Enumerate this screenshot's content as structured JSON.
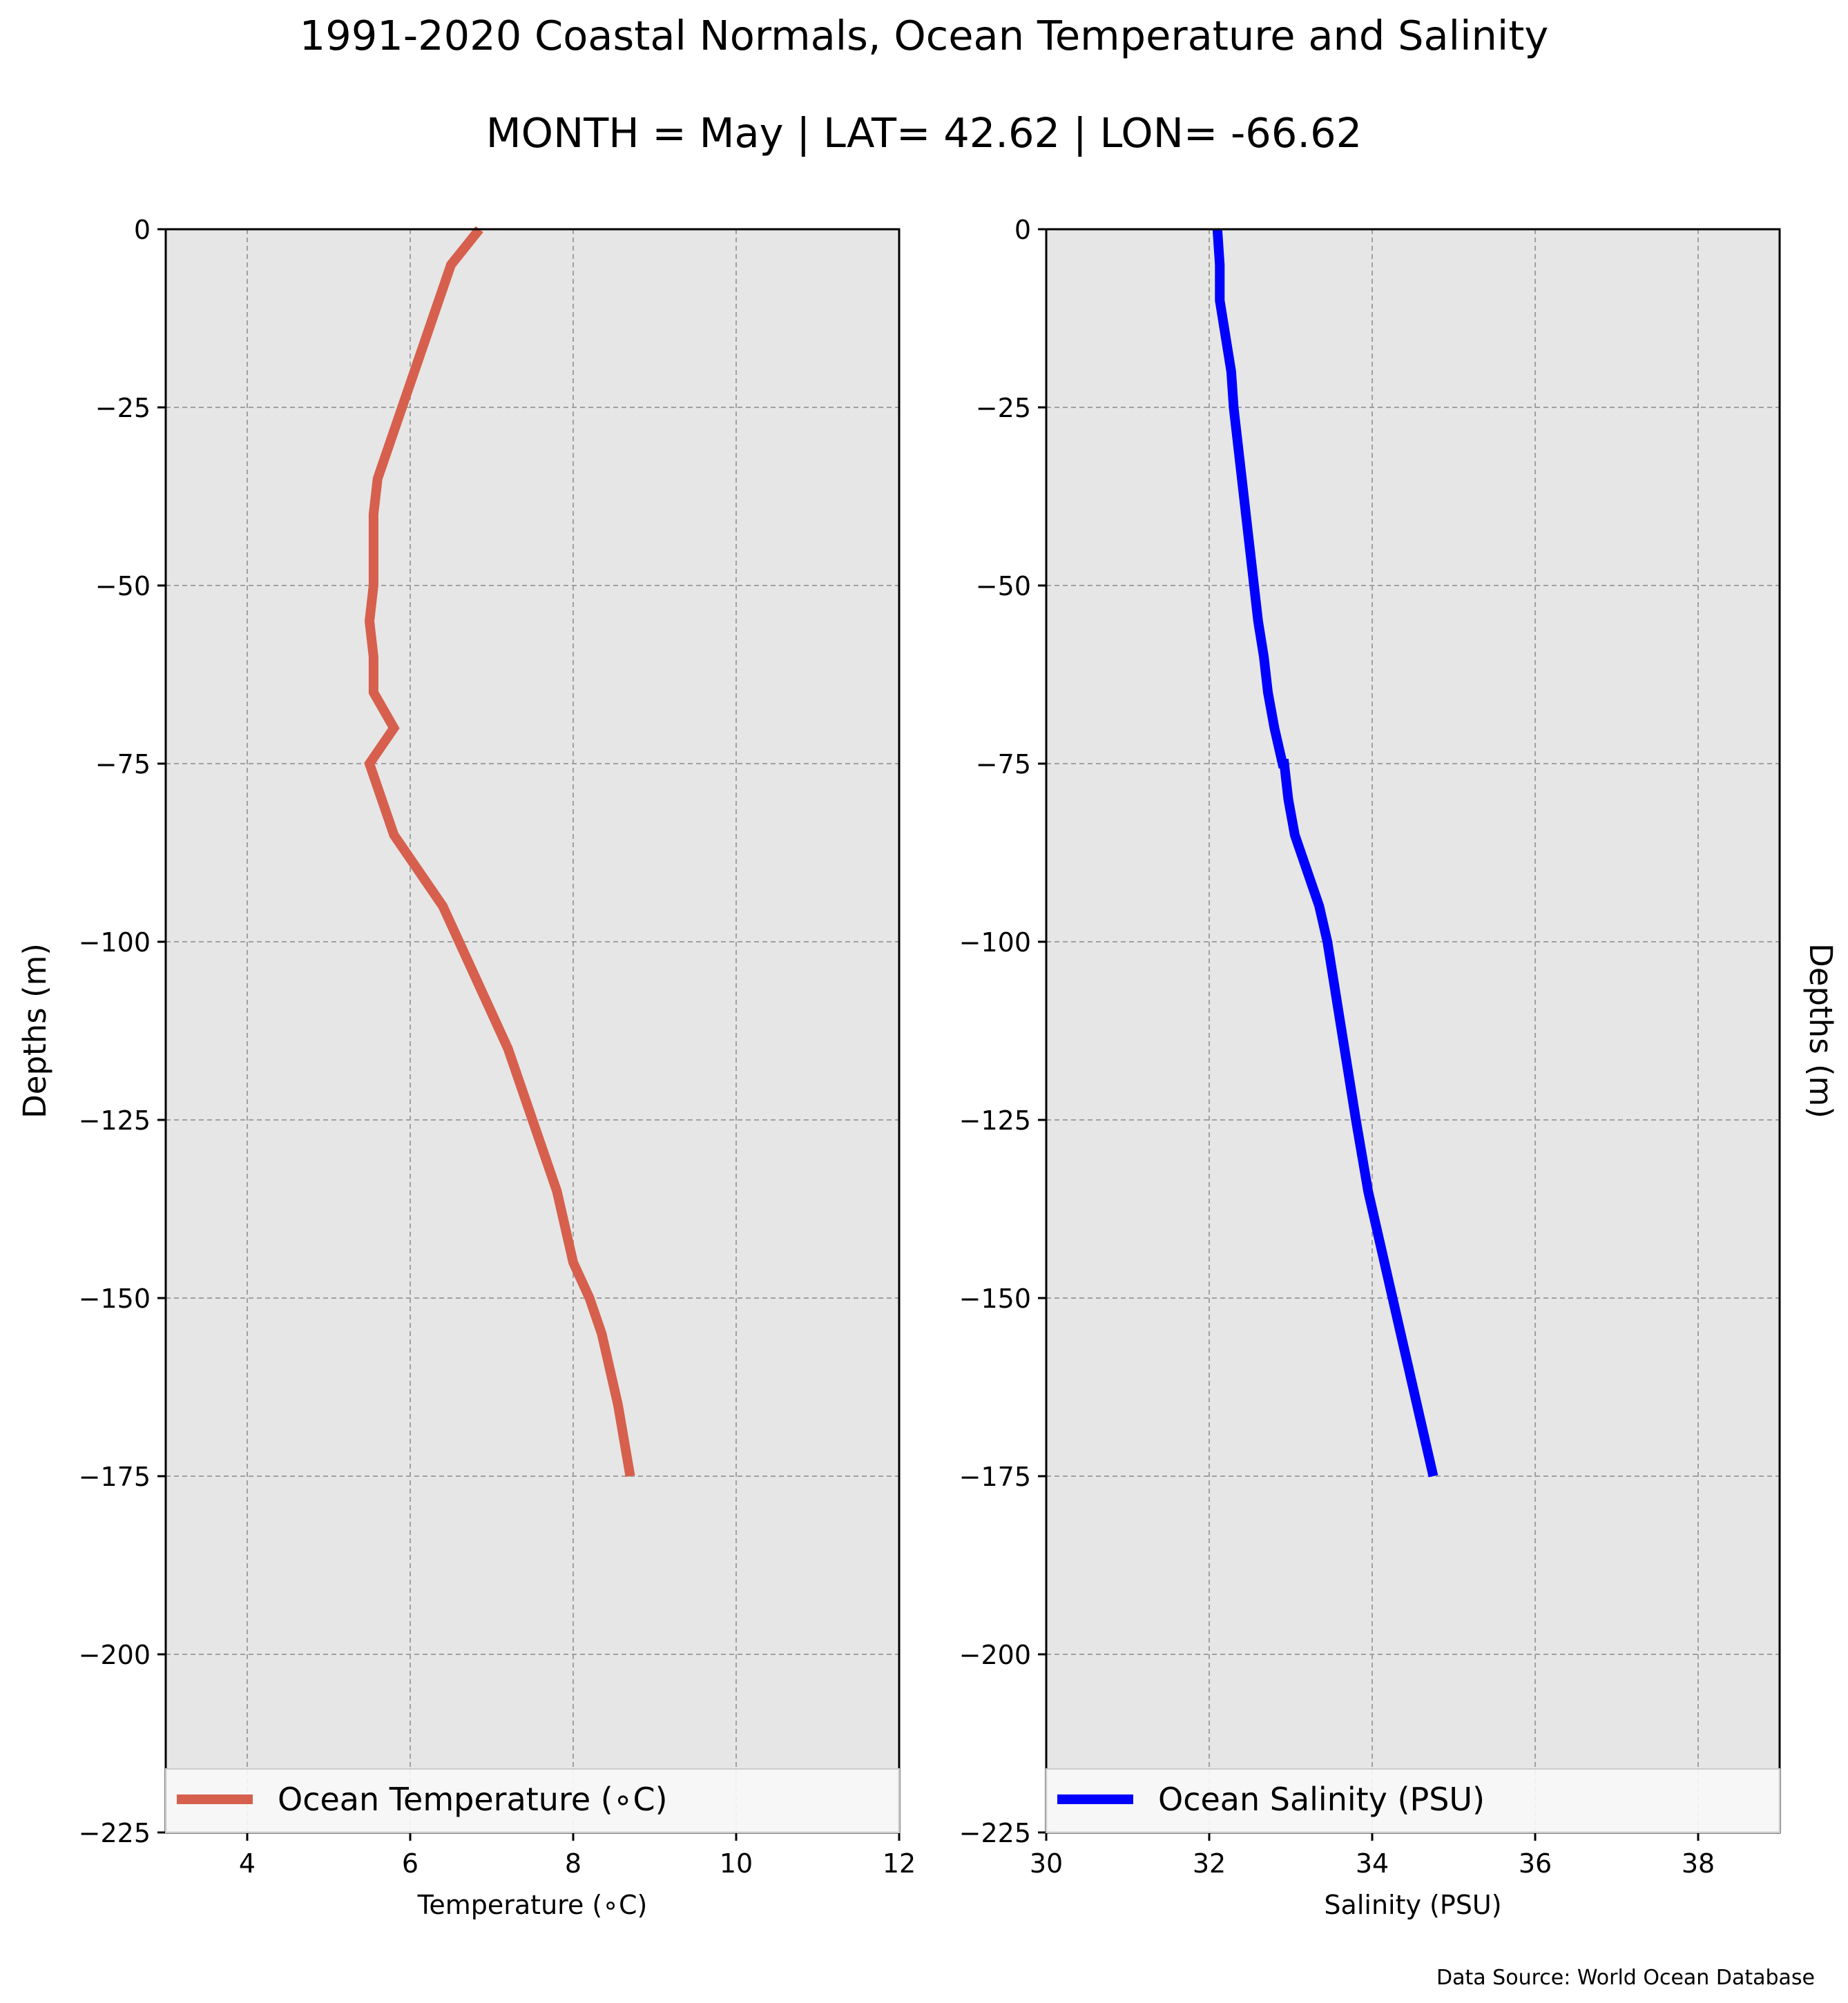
{
  "title": "1991-2020 Coastal Normals, Ocean Temperature and Salinity",
  "subtitle": "MONTH = May | LAT= 42.62 | LON= -66.62",
  "source": "Data Source: World Ocean Database",
  "colors": {
    "temperature": "#d6604d",
    "salinity": "#0000ff",
    "plot_bg": "#e6e6e6",
    "grid": "#a0a0a0"
  },
  "chart_data": [
    {
      "type": "line",
      "xlabel": "Temperature (∘C)",
      "ylabel": "Depths (m)",
      "xlim": [
        3,
        12
      ],
      "ylim": [
        -225,
        0
      ],
      "xticks": [
        4,
        6,
        8,
        10,
        12
      ],
      "xtick_labels": [
        "4",
        "6",
        "8",
        "10",
        "12"
      ],
      "yticks": [
        0,
        -25,
        -50,
        -75,
        -100,
        -125,
        -150,
        -175,
        -200,
        -225
      ],
      "ytick_labels": [
        "0",
        "−25",
        "−50",
        "−75",
        "−100",
        "−125",
        "−150",
        "−175",
        "−200",
        "−225"
      ],
      "grid": true,
      "legend_position": "bottom",
      "series": [
        {
          "name": "Ocean Temperature (∘C)",
          "x": [
            6.85,
            6.5,
            6.35,
            6.2,
            6.05,
            5.9,
            5.75,
            5.6,
            5.55,
            5.55,
            5.55,
            5.5,
            5.55,
            5.55,
            5.8,
            5.5,
            5.65,
            5.8,
            6.1,
            6.4,
            6.6,
            6.8,
            7.0,
            7.2,
            7.5,
            7.8,
            8.0,
            8.2,
            8.35,
            8.55,
            8.7
          ],
          "y": [
            0,
            -5,
            -10,
            -15,
            -20,
            -25,
            -30,
            -35,
            -40,
            -45,
            -50,
            -55,
            -60,
            -65,
            -70,
            -75,
            -80,
            -85,
            -90,
            -95,
            -100,
            -105,
            -110,
            -115,
            -125,
            -135,
            -145,
            -150,
            -155,
            -165,
            -175
          ]
        }
      ]
    },
    {
      "type": "line",
      "xlabel": "Salinity (PSU)",
      "ylabel": "Depths (m)",
      "xlim": [
        30,
        39
      ],
      "ylim": [
        -225,
        0
      ],
      "xticks": [
        30,
        32,
        34,
        36,
        38
      ],
      "xtick_labels": [
        "30",
        "32",
        "34",
        "36",
        "38"
      ],
      "yticks": [
        0,
        -25,
        -50,
        -75,
        -100,
        -125,
        -150,
        -175,
        -200,
        -225
      ],
      "ytick_labels": [
        "0",
        "−25",
        "−50",
        "−75",
        "−100",
        "−125",
        "−150",
        "−175",
        "−200",
        "−225"
      ],
      "grid": true,
      "legend_position": "bottom",
      "series": [
        {
          "name": "Ocean Salinity (PSU)",
          "x": [
            32.1,
            32.13,
            32.13,
            32.2,
            32.27,
            32.3,
            32.35,
            32.4,
            32.45,
            32.5,
            32.55,
            32.6,
            32.67,
            32.72,
            32.8,
            32.9,
            32.92,
            32.97,
            33.05,
            33.35,
            33.45,
            33.8,
            33.95,
            34.35,
            34.55,
            34.75
          ],
          "y": [
            0,
            -5,
            -10,
            -15,
            -20,
            -25,
            -30,
            -35,
            -40,
            -45,
            -50,
            -55,
            -60,
            -65,
            -70,
            -75,
            -75,
            -80,
            -85,
            -95,
            -100,
            -125,
            -135,
            -155,
            -165,
            -175
          ]
        }
      ]
    }
  ]
}
